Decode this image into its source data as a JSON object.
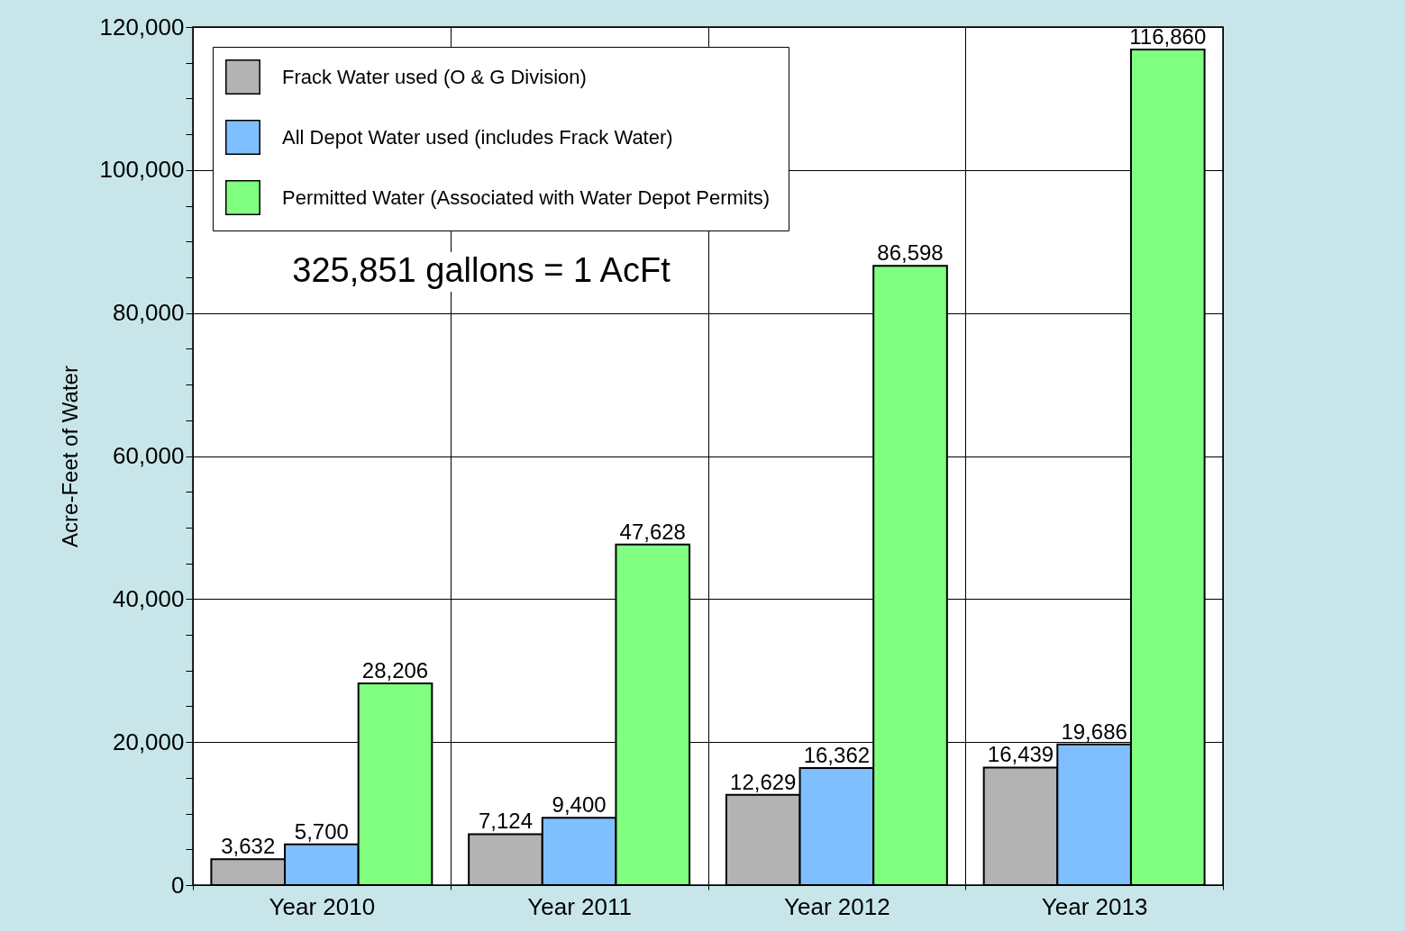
{
  "chart_data": {
    "type": "bar",
    "ylabel": "Acre-Feet of Water",
    "categories": [
      "Year 2010",
      "Year 2011",
      "Year 2012",
      "Year 2013"
    ],
    "series": [
      {
        "name": "Frack Water used (O & G Division)",
        "color": "#b3b3b3",
        "values": [
          3632,
          7124,
          12629,
          16439
        ],
        "value_labels": [
          "3,632",
          "7,124",
          "12,629",
          "16,439"
        ]
      },
      {
        "name": "All Depot Water used (includes Frack Water)",
        "color": "#80bfff",
        "values": [
          5700,
          9400,
          16362,
          19686
        ],
        "value_labels": [
          "5,700",
          "9,400",
          "16,362",
          "19,686"
        ]
      },
      {
        "name": "Permitted  Water (Associated with Water Depot Permits)",
        "color": "#80ff80",
        "values": [
          28206,
          47628,
          86598,
          116860
        ],
        "value_labels": [
          "28,206",
          "47,628",
          "86,598",
          "116,860"
        ]
      }
    ],
    "ylim": [
      0,
      120000
    ],
    "yticks": [
      0,
      {
        "value": 5000,
        "label": null
      },
      {
        "value": 10000,
        "label": null
      },
      {
        "value": 15000,
        "label": null
      },
      {
        "value": 20000,
        "label": "20,000"
      },
      {
        "value": 25000,
        "label": null
      },
      {
        "value": 30000,
        "label": null
      },
      {
        "value": 35000,
        "label": null
      },
      {
        "value": 40000,
        "label": "40,000"
      },
      {
        "value": 45000,
        "label": null
      },
      {
        "value": 50000,
        "label": null
      },
      {
        "value": 55000,
        "label": null
      },
      {
        "value": 60000,
        "label": "60,000"
      },
      {
        "value": 65000,
        "label": null
      },
      {
        "value": 70000,
        "label": null
      },
      {
        "value": 75000,
        "label": null
      },
      {
        "value": 80000,
        "label": "80,000"
      },
      {
        "value": 85000,
        "label": null
      },
      {
        "value": 90000,
        "label": null
      },
      {
        "value": 95000,
        "label": null
      },
      {
        "value": 100000,
        "label": "100,000"
      },
      {
        "value": 105000,
        "label": null
      },
      {
        "value": 110000,
        "label": null
      },
      {
        "value": 115000,
        "label": null
      },
      {
        "value": 120000,
        "label": "120,000"
      }
    ],
    "annotations": [
      "325,851 gallons = 1 AcFt"
    ],
    "grid": true,
    "legend": "top left"
  }
}
